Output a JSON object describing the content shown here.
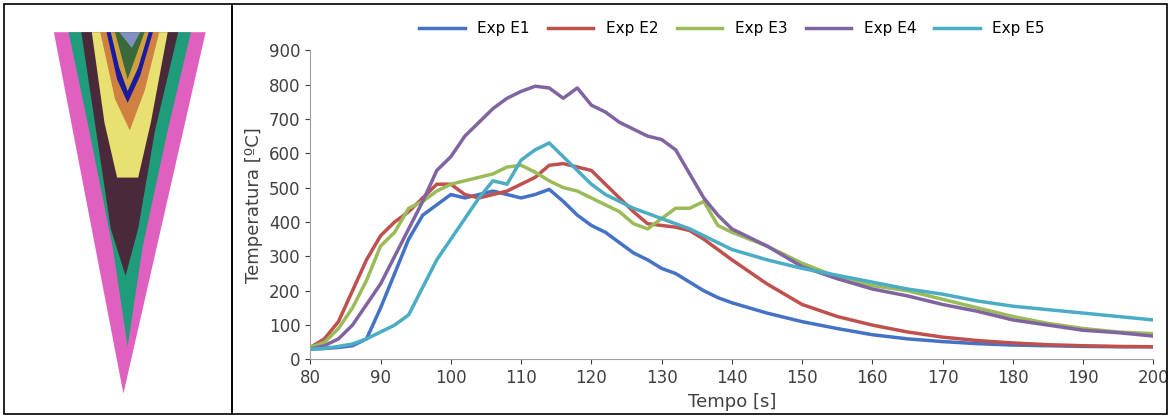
{
  "chart_data": {
    "type": "line",
    "x_label": "Tempo [s]",
    "y_label": "Temperatura [ºC]",
    "x": [
      80,
      82,
      84,
      86,
      88,
      90,
      92,
      94,
      96,
      98,
      100,
      102,
      104,
      106,
      108,
      110,
      112,
      114,
      116,
      118,
      120,
      122,
      124,
      126,
      128,
      130,
      132,
      134,
      136,
      138,
      140,
      145,
      150,
      155,
      160,
      165,
      170,
      175,
      180,
      185,
      190,
      195,
      200
    ],
    "series": [
      {
        "name": "Exp E1",
        "color": "#4472c4",
        "values": [
          30,
          32,
          35,
          40,
          60,
          150,
          250,
          350,
          420,
          450,
          480,
          470,
          480,
          490,
          480,
          470,
          480,
          495,
          460,
          420,
          390,
          370,
          340,
          310,
          290,
          265,
          250,
          225,
          200,
          180,
          165,
          135,
          110,
          90,
          72,
          60,
          52,
          46,
          42,
          40,
          38,
          37,
          37
        ]
      },
      {
        "name": "Exp E2",
        "color": "#c0504d",
        "values": [
          35,
          60,
          110,
          200,
          290,
          360,
          400,
          430,
          470,
          510,
          510,
          480,
          470,
          480,
          490,
          510,
          530,
          565,
          570,
          560,
          550,
          510,
          470,
          430,
          395,
          390,
          385,
          375,
          350,
          320,
          290,
          220,
          160,
          125,
          100,
          80,
          65,
          55,
          48,
          43,
          40,
          38,
          37
        ]
      },
      {
        "name": "Exp E3",
        "color": "#9bbb59",
        "values": [
          35,
          50,
          90,
          150,
          230,
          330,
          370,
          440,
          460,
          490,
          510,
          520,
          530,
          540,
          560,
          565,
          545,
          520,
          500,
          490,
          470,
          450,
          430,
          395,
          380,
          410,
          440,
          440,
          460,
          390,
          370,
          330,
          280,
          240,
          215,
          200,
          175,
          150,
          125,
          105,
          90,
          80,
          75
        ]
      },
      {
        "name": "Exp E4",
        "color": "#8064a2",
        "values": [
          30,
          40,
          60,
          100,
          160,
          220,
          300,
          380,
          460,
          550,
          590,
          650,
          690,
          730,
          760,
          780,
          795,
          790,
          760,
          790,
          740,
          720,
          690,
          670,
          650,
          640,
          610,
          540,
          470,
          420,
          380,
          330,
          270,
          235,
          205,
          185,
          160,
          140,
          115,
          100,
          85,
          78,
          68
        ]
      },
      {
        "name": "Exp E5",
        "color": "#4bacc6",
        "values": [
          30,
          32,
          38,
          45,
          60,
          80,
          100,
          130,
          210,
          290,
          350,
          410,
          470,
          520,
          510,
          580,
          610,
          630,
          590,
          550,
          510,
          480,
          460,
          440,
          425,
          410,
          395,
          380,
          360,
          340,
          320,
          290,
          265,
          245,
          225,
          205,
          190,
          170,
          155,
          145,
          135,
          125,
          115
        ]
      }
    ],
    "xlim": [
      80,
      200
    ],
    "xticks": [
      80,
      90,
      100,
      110,
      120,
      130,
      140,
      150,
      160,
      170,
      180,
      190,
      200
    ],
    "ylim": [
      0,
      900
    ],
    "yticks": [
      0,
      100,
      200,
      300,
      400,
      500,
      600,
      700,
      800,
      900
    ],
    "grid": false,
    "legend": "top"
  }
}
